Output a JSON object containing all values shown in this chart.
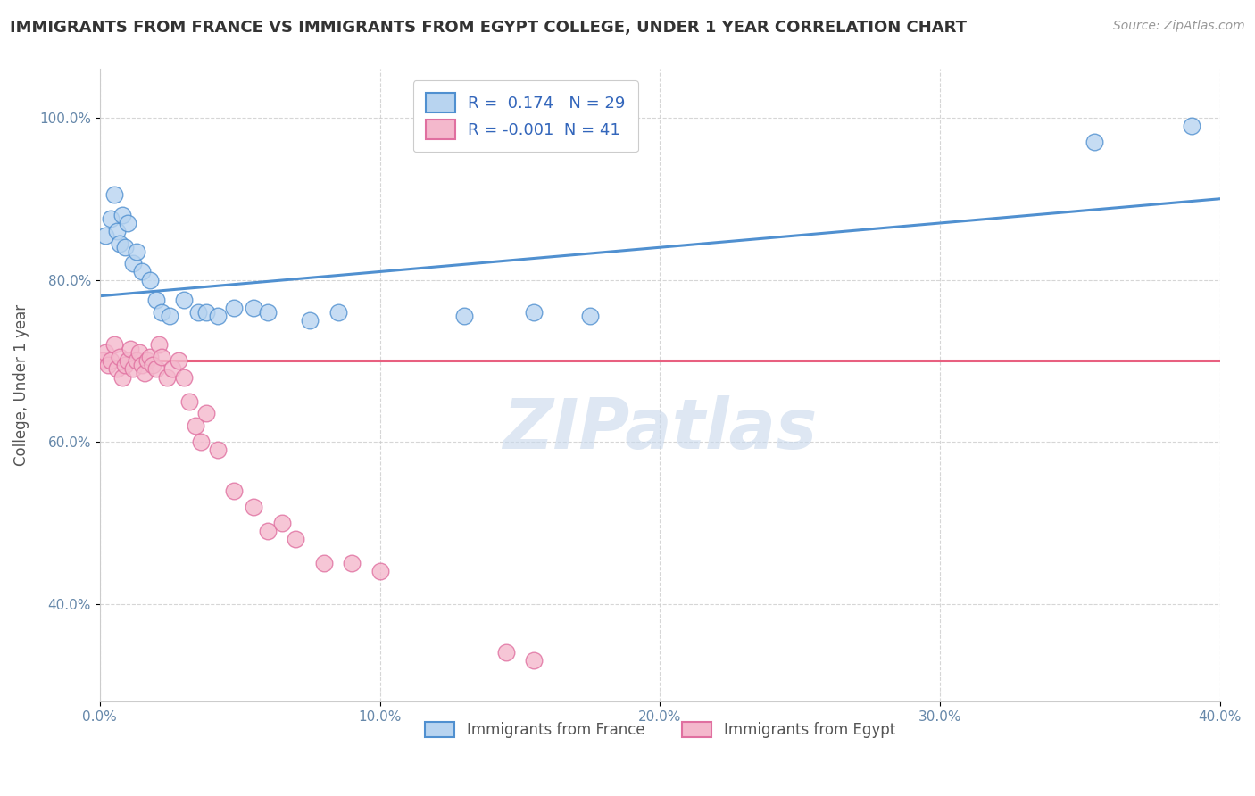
{
  "title": "IMMIGRANTS FROM FRANCE VS IMMIGRANTS FROM EGYPT COLLEGE, UNDER 1 YEAR CORRELATION CHART",
  "source": "Source: ZipAtlas.com",
  "ylabel": "College, Under 1 year",
  "legend_label1": "Immigrants from France",
  "legend_label2": "Immigrants from Egypt",
  "R1": 0.174,
  "N1": 29,
  "R2": -0.001,
  "N2": 41,
  "xlim": [
    0.0,
    0.4
  ],
  "ylim": [
    0.28,
    1.06
  ],
  "xticks": [
    0.0,
    0.1,
    0.2,
    0.3,
    0.4
  ],
  "yticks": [
    0.4,
    0.6,
    0.8,
    1.0
  ],
  "ytick_labels": [
    "40.0%",
    "60.0%",
    "80.0%",
    "100.0%"
  ],
  "xtick_labels": [
    "0.0%",
    "10.0%",
    "20.0%",
    "30.0%",
    "40.0%"
  ],
  "color_france": "#b8d4f0",
  "color_egypt": "#f4b8cc",
  "color_france_line": "#5090d0",
  "color_egypt_line": "#e86080",
  "color_egypt_edge": "#e070a0",
  "background": "#ffffff",
  "grid_color": "#cccccc",
  "france_x": [
    0.002,
    0.004,
    0.005,
    0.006,
    0.007,
    0.008,
    0.009,
    0.01,
    0.012,
    0.013,
    0.015,
    0.018,
    0.02,
    0.022,
    0.025,
    0.03,
    0.035,
    0.038,
    0.042,
    0.048,
    0.055,
    0.06,
    0.075,
    0.085,
    0.13,
    0.155,
    0.175,
    0.355,
    0.39
  ],
  "france_y": [
    0.855,
    0.875,
    0.905,
    0.86,
    0.845,
    0.88,
    0.84,
    0.87,
    0.82,
    0.835,
    0.81,
    0.8,
    0.775,
    0.76,
    0.755,
    0.775,
    0.76,
    0.76,
    0.755,
    0.765,
    0.765,
    0.76,
    0.75,
    0.76,
    0.755,
    0.76,
    0.755,
    0.97,
    0.99
  ],
  "egypt_x": [
    0.001,
    0.002,
    0.003,
    0.004,
    0.005,
    0.006,
    0.007,
    0.008,
    0.009,
    0.01,
    0.011,
    0.012,
    0.013,
    0.014,
    0.015,
    0.016,
    0.017,
    0.018,
    0.019,
    0.02,
    0.021,
    0.022,
    0.024,
    0.026,
    0.028,
    0.03,
    0.032,
    0.034,
    0.036,
    0.038,
    0.042,
    0.048,
    0.055,
    0.06,
    0.065,
    0.07,
    0.08,
    0.09,
    0.1,
    0.145,
    0.155
  ],
  "egypt_y": [
    0.7,
    0.71,
    0.695,
    0.7,
    0.72,
    0.69,
    0.705,
    0.68,
    0.695,
    0.7,
    0.715,
    0.69,
    0.7,
    0.71,
    0.695,
    0.685,
    0.7,
    0.705,
    0.695,
    0.69,
    0.72,
    0.705,
    0.68,
    0.69,
    0.7,
    0.68,
    0.65,
    0.62,
    0.6,
    0.635,
    0.59,
    0.54,
    0.52,
    0.49,
    0.5,
    0.48,
    0.45,
    0.45,
    0.44,
    0.34,
    0.33
  ],
  "blue_line_x": [
    0.0,
    0.4
  ],
  "blue_line_y": [
    0.78,
    0.9
  ],
  "pink_line_x": [
    0.0,
    0.4
  ],
  "pink_line_y": [
    0.7,
    0.7
  ],
  "watermark": "ZIPatlas",
  "watermark_color": "#c8d8ec"
}
